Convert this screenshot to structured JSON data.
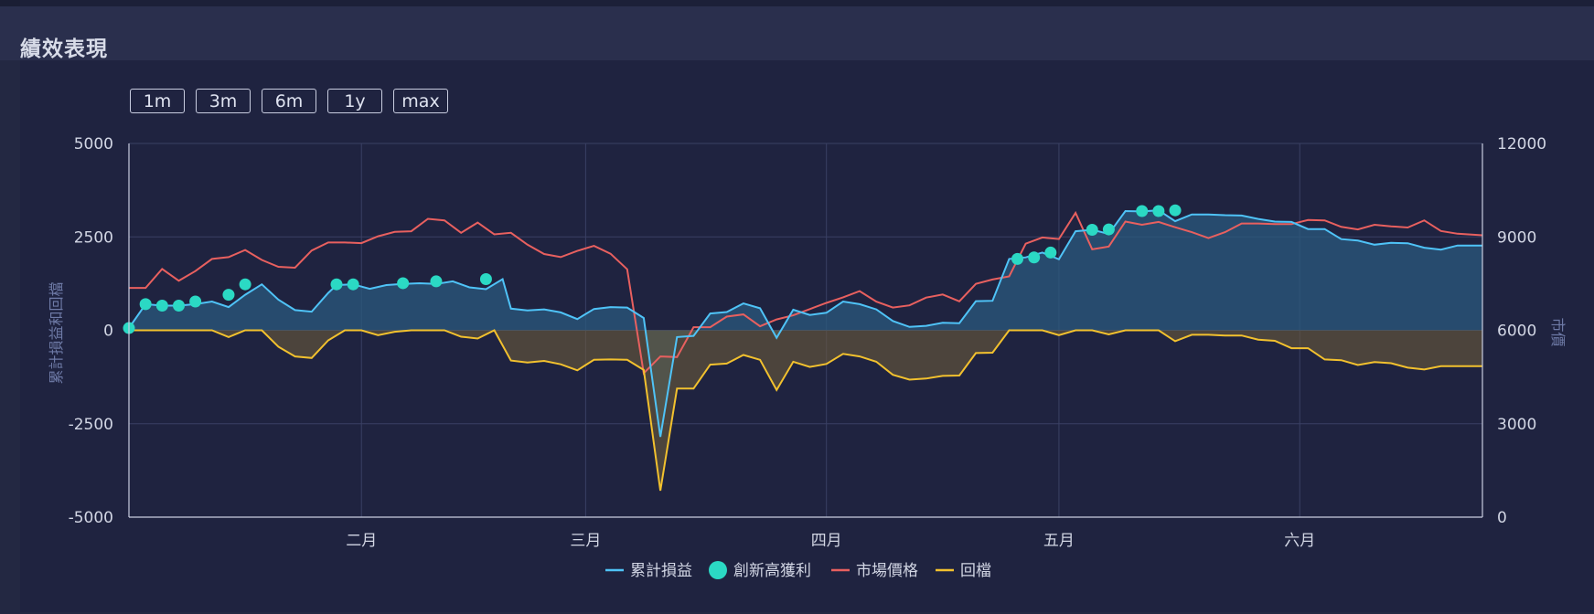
{
  "panel": {
    "title": "績效表現"
  },
  "range_buttons": [
    "1m",
    "3m",
    "6m",
    "1y",
    "max"
  ],
  "chart_data": {
    "type": "line",
    "y_left": {
      "label": "累計損益和回檔",
      "min": -5000,
      "max": 5000,
      "ticks": [
        5000,
        2500,
        0,
        -2500,
        -5000
      ]
    },
    "y_right": {
      "label": "市價",
      "min": 0,
      "max": 12000,
      "ticks": [
        12000,
        9000,
        6000,
        3000,
        0
      ]
    },
    "x_axis": {
      "type": "day_index",
      "min": 0,
      "max": 163,
      "month_labels": [
        {
          "label": "二月",
          "at": 28
        },
        {
          "label": "三月",
          "at": 55
        },
        {
          "label": "四月",
          "at": 84
        },
        {
          "label": "五月",
          "at": 112
        },
        {
          "label": "六月",
          "at": 141
        }
      ]
    },
    "grid": true,
    "legend_position": "bottom-center",
    "colors": {
      "cumulative_pnl": "#4fc3f7",
      "new_high": "#2bd9c4",
      "market_price": "#e8605f",
      "drawdown": "#f2c12e"
    },
    "series": [
      {
        "key": "cumulative_pnl",
        "name": "累計損益",
        "axis": "left",
        "points": [
          [
            0,
            60
          ],
          [
            2,
            700
          ],
          [
            4,
            660
          ],
          [
            6,
            660
          ],
          [
            8,
            700
          ],
          [
            10,
            770
          ],
          [
            12,
            620
          ],
          [
            14,
            950
          ],
          [
            16,
            1230
          ],
          [
            18,
            820
          ],
          [
            20,
            540
          ],
          [
            22,
            500
          ],
          [
            24,
            1000
          ],
          [
            25,
            1210
          ],
          [
            27,
            1230
          ],
          [
            29,
            1110
          ],
          [
            31,
            1210
          ],
          [
            33,
            1240
          ],
          [
            35,
            1260
          ],
          [
            37,
            1240
          ],
          [
            39,
            1310
          ],
          [
            41,
            1150
          ],
          [
            43,
            1100
          ],
          [
            45,
            1370
          ],
          [
            46,
            580
          ],
          [
            48,
            530
          ],
          [
            50,
            560
          ],
          [
            52,
            480
          ],
          [
            54,
            300
          ],
          [
            56,
            570
          ],
          [
            58,
            620
          ],
          [
            60,
            610
          ],
          [
            62,
            330
          ],
          [
            64,
            -2850
          ],
          [
            66,
            -180
          ],
          [
            68,
            -150
          ],
          [
            70,
            450
          ],
          [
            72,
            490
          ],
          [
            74,
            720
          ],
          [
            76,
            590
          ],
          [
            78,
            -200
          ],
          [
            80,
            550
          ],
          [
            82,
            410
          ],
          [
            84,
            470
          ],
          [
            86,
            770
          ],
          [
            88,
            700
          ],
          [
            90,
            560
          ],
          [
            92,
            250
          ],
          [
            94,
            90
          ],
          [
            96,
            120
          ],
          [
            98,
            200
          ],
          [
            100,
            190
          ],
          [
            102,
            780
          ],
          [
            104,
            790
          ],
          [
            106,
            1910
          ],
          [
            108,
            1950
          ],
          [
            110,
            2080
          ],
          [
            112,
            1900
          ],
          [
            114,
            2650
          ],
          [
            116,
            2690
          ],
          [
            118,
            2580
          ],
          [
            120,
            3190
          ],
          [
            122,
            3180
          ],
          [
            124,
            3210
          ],
          [
            126,
            2920
          ],
          [
            128,
            3100
          ],
          [
            130,
            3100
          ],
          [
            132,
            3080
          ],
          [
            134,
            3070
          ],
          [
            136,
            2980
          ],
          [
            138,
            2910
          ],
          [
            140,
            2900
          ],
          [
            142,
            2710
          ],
          [
            144,
            2710
          ],
          [
            146,
            2440
          ],
          [
            148,
            2400
          ],
          [
            150,
            2290
          ],
          [
            152,
            2340
          ],
          [
            154,
            2330
          ],
          [
            156,
            2210
          ],
          [
            158,
            2160
          ],
          [
            160,
            2270
          ],
          [
            163,
            2270
          ]
        ]
      },
      {
        "key": "new_high",
        "name": "創新高獲利",
        "axis": "left",
        "points": [
          [
            0,
            60
          ],
          [
            2,
            700
          ],
          [
            4,
            660
          ],
          [
            6,
            660
          ],
          [
            8,
            770
          ],
          [
            12,
            950
          ],
          [
            14,
            1230
          ],
          [
            25,
            1230
          ],
          [
            27,
            1230
          ],
          [
            33,
            1260
          ],
          [
            37,
            1310
          ],
          [
            43,
            1370
          ],
          [
            107,
            1910
          ],
          [
            109,
            1950
          ],
          [
            111,
            2080
          ],
          [
            116,
            2690
          ],
          [
            118,
            2700
          ],
          [
            122,
            3190
          ],
          [
            124,
            3190
          ],
          [
            126,
            3210
          ]
        ]
      },
      {
        "key": "market_price",
        "name": "市場價格",
        "axis": "right",
        "points": [
          [
            0,
            7360
          ],
          [
            2,
            7360
          ],
          [
            4,
            7970
          ],
          [
            6,
            7590
          ],
          [
            8,
            7900
          ],
          [
            10,
            8290
          ],
          [
            12,
            8350
          ],
          [
            14,
            8580
          ],
          [
            16,
            8260
          ],
          [
            18,
            8040
          ],
          [
            20,
            8010
          ],
          [
            22,
            8560
          ],
          [
            24,
            8820
          ],
          [
            26,
            8820
          ],
          [
            28,
            8800
          ],
          [
            30,
            9020
          ],
          [
            32,
            9160
          ],
          [
            34,
            9180
          ],
          [
            36,
            9580
          ],
          [
            38,
            9530
          ],
          [
            40,
            9130
          ],
          [
            42,
            9460
          ],
          [
            44,
            9080
          ],
          [
            46,
            9130
          ],
          [
            48,
            8750
          ],
          [
            50,
            8450
          ],
          [
            52,
            8350
          ],
          [
            54,
            8550
          ],
          [
            56,
            8710
          ],
          [
            58,
            8460
          ],
          [
            60,
            7960
          ],
          [
            62,
            4620
          ],
          [
            64,
            5160
          ],
          [
            66,
            5140
          ],
          [
            68,
            6100
          ],
          [
            70,
            6100
          ],
          [
            72,
            6440
          ],
          [
            74,
            6510
          ],
          [
            76,
            6130
          ],
          [
            78,
            6350
          ],
          [
            80,
            6480
          ],
          [
            82,
            6680
          ],
          [
            84,
            6880
          ],
          [
            86,
            7060
          ],
          [
            88,
            7260
          ],
          [
            90,
            6920
          ],
          [
            92,
            6730
          ],
          [
            94,
            6800
          ],
          [
            96,
            7050
          ],
          [
            98,
            7150
          ],
          [
            100,
            6930
          ],
          [
            102,
            7490
          ],
          [
            104,
            7630
          ],
          [
            106,
            7730
          ],
          [
            108,
            8780
          ],
          [
            110,
            8980
          ],
          [
            112,
            8930
          ],
          [
            114,
            9770
          ],
          [
            116,
            8600
          ],
          [
            118,
            8690
          ],
          [
            120,
            9490
          ],
          [
            122,
            9390
          ],
          [
            124,
            9480
          ],
          [
            126,
            9310
          ],
          [
            128,
            9150
          ],
          [
            130,
            8960
          ],
          [
            132,
            9150
          ],
          [
            134,
            9430
          ],
          [
            136,
            9430
          ],
          [
            138,
            9410
          ],
          [
            140,
            9410
          ],
          [
            142,
            9540
          ],
          [
            144,
            9530
          ],
          [
            146,
            9320
          ],
          [
            148,
            9240
          ],
          [
            150,
            9390
          ],
          [
            152,
            9340
          ],
          [
            154,
            9300
          ],
          [
            156,
            9530
          ],
          [
            158,
            9190
          ],
          [
            160,
            9100
          ],
          [
            163,
            9050
          ]
        ]
      },
      {
        "key": "drawdown",
        "name": "回檔",
        "axis": "left",
        "points": [
          [
            0,
            0
          ],
          [
            2,
            0
          ],
          [
            4,
            0
          ],
          [
            6,
            0
          ],
          [
            8,
            0
          ],
          [
            10,
            0
          ],
          [
            12,
            -180
          ],
          [
            14,
            0
          ],
          [
            16,
            0
          ],
          [
            18,
            -440
          ],
          [
            20,
            -700
          ],
          [
            22,
            -740
          ],
          [
            24,
            -270
          ],
          [
            26,
            0
          ],
          [
            28,
            0
          ],
          [
            30,
            -130
          ],
          [
            32,
            -40
          ],
          [
            34,
            0
          ],
          [
            36,
            0
          ],
          [
            38,
            0
          ],
          [
            40,
            -170
          ],
          [
            42,
            -220
          ],
          [
            44,
            0
          ],
          [
            46,
            -810
          ],
          [
            48,
            -860
          ],
          [
            50,
            -820
          ],
          [
            52,
            -910
          ],
          [
            54,
            -1070
          ],
          [
            56,
            -790
          ],
          [
            58,
            -780
          ],
          [
            60,
            -790
          ],
          [
            62,
            -1060
          ],
          [
            64,
            -4290
          ],
          [
            66,
            -1560
          ],
          [
            68,
            -1560
          ],
          [
            70,
            -920
          ],
          [
            72,
            -890
          ],
          [
            74,
            -660
          ],
          [
            76,
            -790
          ],
          [
            78,
            -1600
          ],
          [
            80,
            -840
          ],
          [
            82,
            -980
          ],
          [
            84,
            -900
          ],
          [
            86,
            -630
          ],
          [
            88,
            -700
          ],
          [
            90,
            -840
          ],
          [
            92,
            -1190
          ],
          [
            94,
            -1320
          ],
          [
            96,
            -1290
          ],
          [
            98,
            -1220
          ],
          [
            100,
            -1210
          ],
          [
            102,
            -610
          ],
          [
            104,
            -600
          ],
          [
            106,
            0
          ],
          [
            108,
            0
          ],
          [
            110,
            0
          ],
          [
            112,
            -130
          ],
          [
            114,
            0
          ],
          [
            116,
            0
          ],
          [
            118,
            -110
          ],
          [
            120,
            0
          ],
          [
            122,
            0
          ],
          [
            124,
            0
          ],
          [
            126,
            -290
          ],
          [
            128,
            -120
          ],
          [
            130,
            -120
          ],
          [
            132,
            -140
          ],
          [
            134,
            -140
          ],
          [
            136,
            -250
          ],
          [
            138,
            -280
          ],
          [
            140,
            -480
          ],
          [
            142,
            -480
          ],
          [
            144,
            -780
          ],
          [
            146,
            -800
          ],
          [
            148,
            -930
          ],
          [
            150,
            -850
          ],
          [
            152,
            -880
          ],
          [
            154,
            -1000
          ],
          [
            156,
            -1050
          ],
          [
            158,
            -960
          ],
          [
            160,
            -960
          ],
          [
            163,
            -960
          ]
        ]
      }
    ]
  }
}
